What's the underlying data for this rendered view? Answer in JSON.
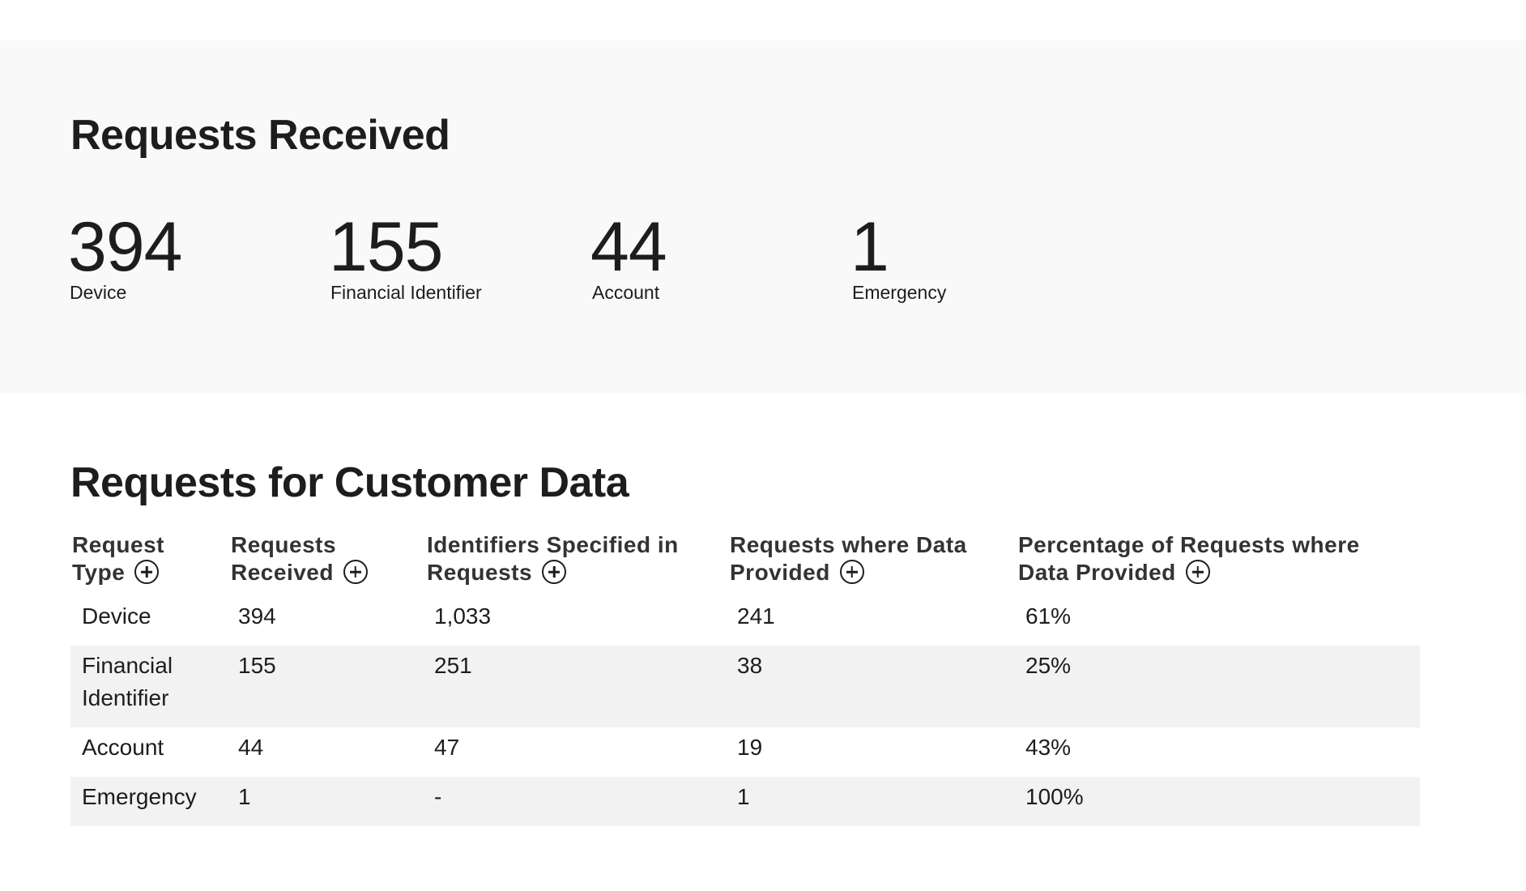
{
  "summary": {
    "title": "Requests Received",
    "stats": [
      {
        "value": "394",
        "label": "Device"
      },
      {
        "value": "155",
        "label": "Financial Identifier"
      },
      {
        "value": "44",
        "label": "Account"
      },
      {
        "value": "1",
        "label": "Emergency"
      }
    ]
  },
  "detail": {
    "title": "Requests for Customer Data",
    "columns": [
      {
        "line1": "Request",
        "line2": "Type"
      },
      {
        "line1": "Requests",
        "line2": "Received"
      },
      {
        "line1": "Identifiers Specified in",
        "line2": "Requests"
      },
      {
        "line1": "Requests where Data",
        "line2": "Provided"
      },
      {
        "line1": "Percentage of Requests where",
        "line2": "Data Provided"
      }
    ],
    "rows": [
      {
        "type": "Device",
        "received": "394",
        "identifiers": "1,033",
        "provided": "241",
        "percent": "61%"
      },
      {
        "type": "Financial Identifier",
        "received": "155",
        "identifiers": "251",
        "provided": "38",
        "percent": "25%"
      },
      {
        "type": "Account",
        "received": "44",
        "identifiers": "47",
        "provided": "19",
        "percent": "43%"
      },
      {
        "type": "Emergency",
        "received": "1",
        "identifiers": "-",
        "provided": "1",
        "percent": "100%"
      }
    ]
  },
  "icons": {
    "expand": "plus-circle-icon"
  },
  "colors": {
    "summary_bg": "#f9f9f9",
    "row_shade": "#f2f2f2",
    "text": "#1d1d1f"
  }
}
